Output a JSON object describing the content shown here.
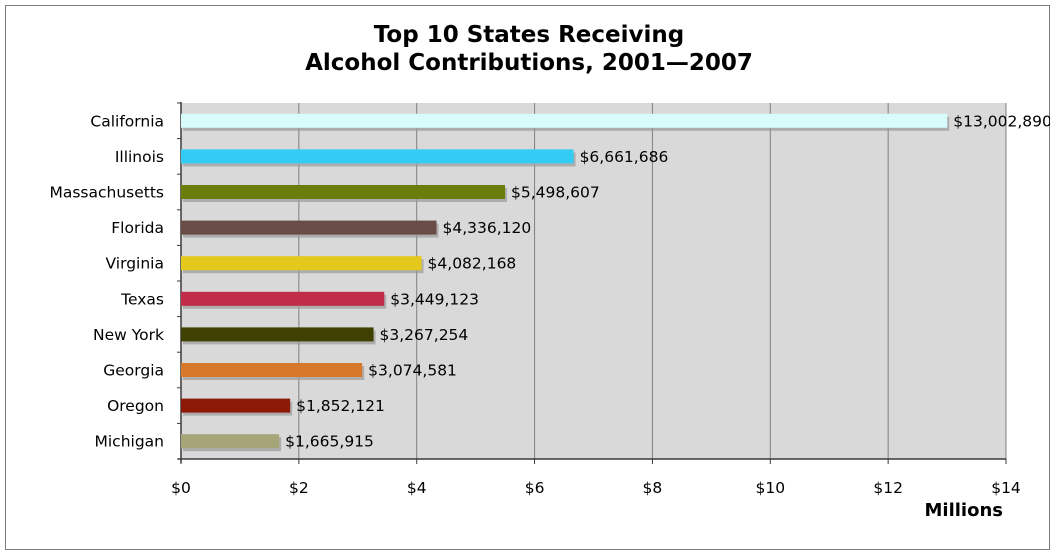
{
  "chart_data": {
    "type": "bar",
    "orientation": "horizontal",
    "title": [
      "Top 10 States Receiving",
      "Alcohol Contributions, 2001—2007"
    ],
    "xlabel": "Millions",
    "ylabel": "",
    "categories": [
      "California",
      "Illinois",
      "Massachusetts",
      "Florida",
      "Virginia",
      "Texas",
      "New York",
      "Georgia",
      "Oregon",
      "Michigan"
    ],
    "values": [
      13002890,
      6661686,
      5498607,
      4336120,
      4082168,
      3449123,
      3267254,
      3074581,
      1852121,
      1665915
    ],
    "data_labels": [
      "$13,002,890",
      "$6,661,686",
      "$5,498,607",
      "$4,336,120",
      "$4,082,168",
      "$3,449,123",
      "$3,267,254",
      "$3,074,581",
      "$1,852,121",
      "$1,665,915"
    ],
    "bar_colors": [
      "#d8fcfc",
      "#33ccf4",
      "#6b7d0b",
      "#6a4c47",
      "#e5c81c",
      "#c12c4a",
      "#404000",
      "#d8782a",
      "#8c1a07",
      "#a6a577"
    ],
    "xlim": [
      0,
      14
    ],
    "x_ticks": [
      0,
      2,
      4,
      6,
      8,
      10,
      12,
      14
    ],
    "x_tick_labels": [
      "$0",
      "$2",
      "$4",
      "$6",
      "$8",
      "$10",
      "$12",
      "$14"
    ],
    "grid": true,
    "legend": "none",
    "plot_background": "#d9d9d9"
  }
}
